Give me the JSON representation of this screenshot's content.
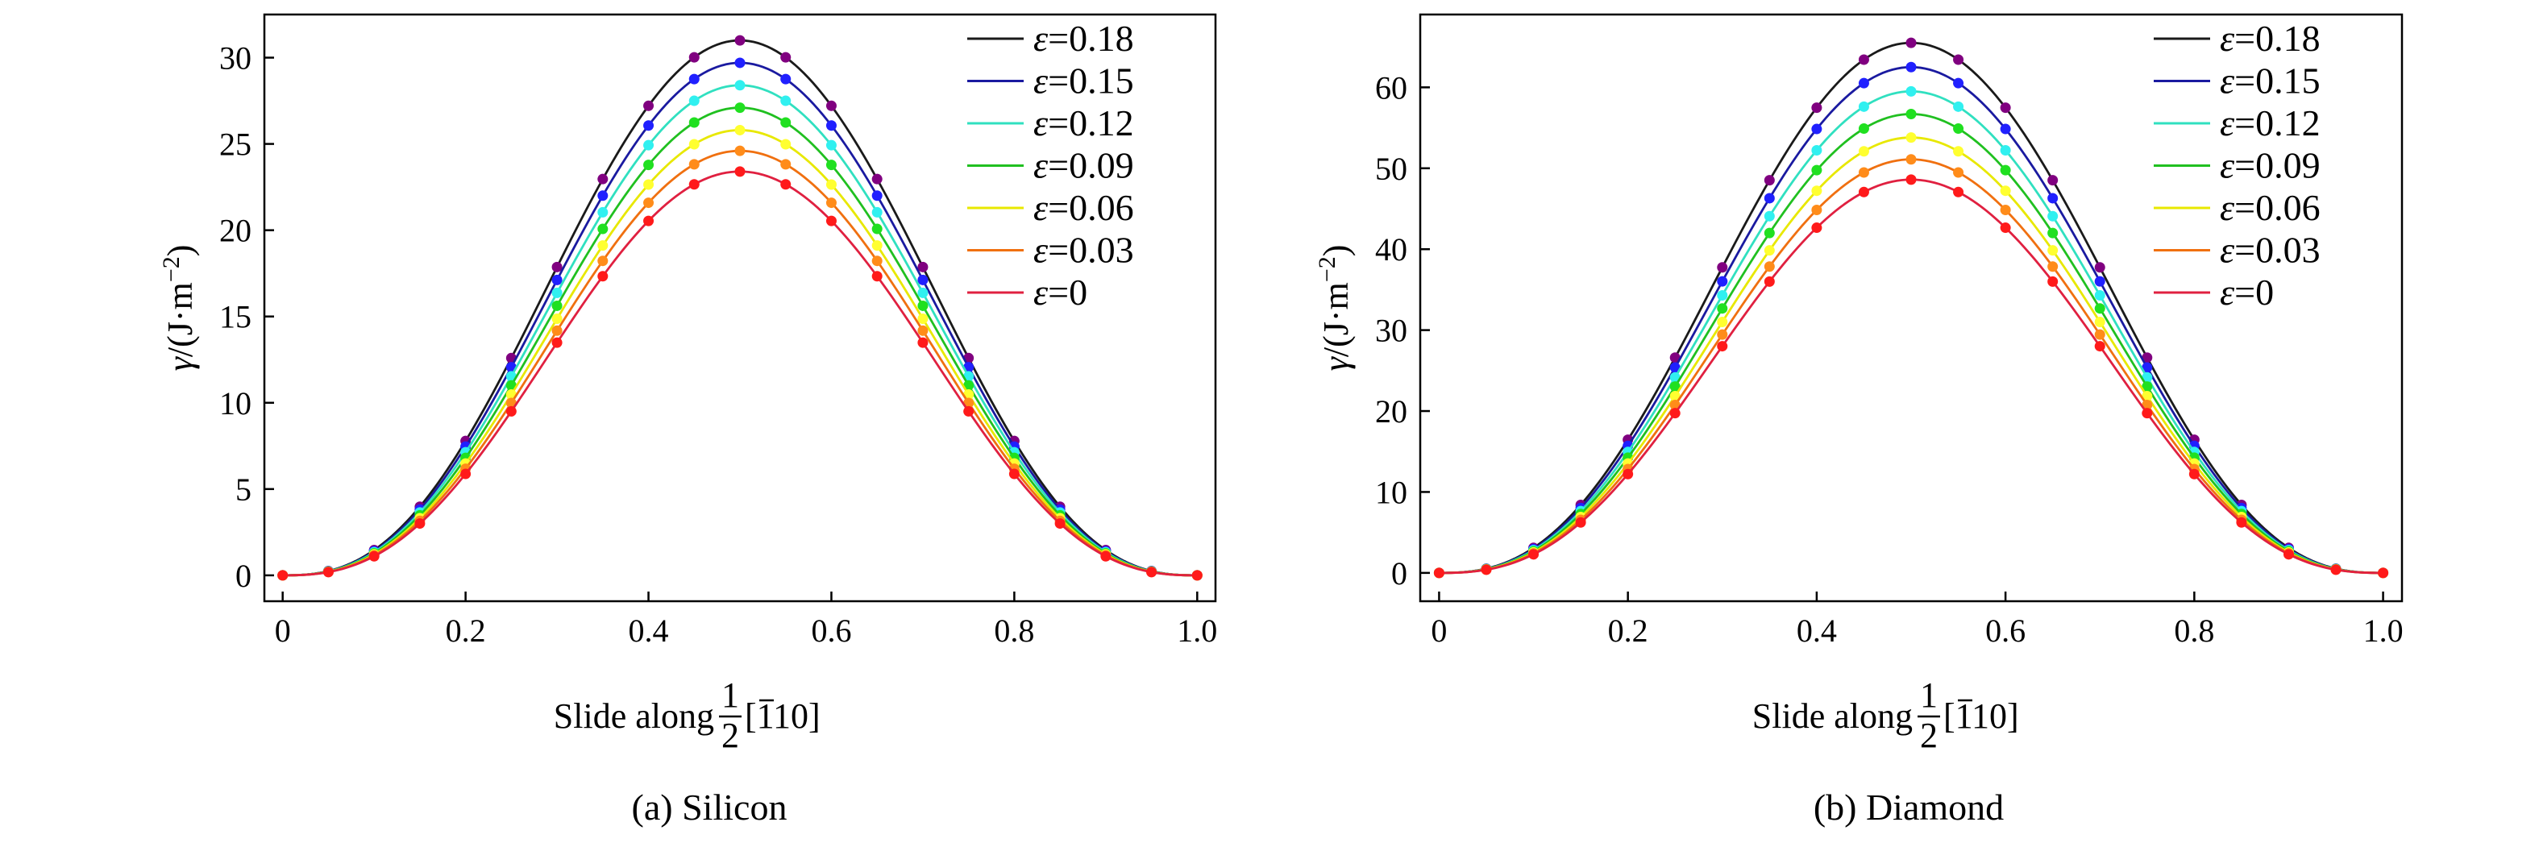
{
  "figure": {
    "panels": [
      "Silicon",
      "Diamond"
    ]
  },
  "chart_data": [
    {
      "type": "line",
      "title": "",
      "caption": "(a) Silicon",
      "xlabel_prefix": "Slide along",
      "xlabel_fraction_num": "1",
      "xlabel_fraction_den": "2",
      "xlabel_bracket_open": "[",
      "xlabel_bar_digit": "1",
      "xlabel_rest": "10]",
      "ylabel_gamma": "γ",
      "ylabel_rest": "/(J·m",
      "ylabel_sup": "−2",
      "ylabel_close": ")",
      "xlim": [
        -0.02,
        1.02
      ],
      "ylim": [
        -1.5,
        32.5
      ],
      "xticks": [
        0,
        0.2,
        0.4,
        0.6,
        0.8,
        1.0
      ],
      "xtick_labels": [
        "0",
        "0.2",
        "0.4",
        "0.6",
        "0.8",
        "1.0"
      ],
      "yticks": [
        0,
        5,
        10,
        15,
        20,
        25,
        30
      ],
      "ytick_labels": [
        "0",
        "5",
        "10",
        "15",
        "20",
        "25",
        "30"
      ],
      "legend_position": "top-right",
      "marker_x": [
        0,
        0.05,
        0.1,
        0.15,
        0.2,
        0.25,
        0.3,
        0.35,
        0.4,
        0.45,
        0.5,
        0.55,
        0.6,
        0.65,
        0.7,
        0.75,
        0.8,
        0.85,
        0.9,
        0.95,
        1.0
      ],
      "series": [
        {
          "name": "ε=0.18",
          "symbol": "ε",
          "value_text": "=0.18",
          "peak": 31.0,
          "line_color": "#1a1a1a",
          "marker_color": "#800080"
        },
        {
          "name": "ε=0.15",
          "symbol": "ε",
          "value_text": "=0.15",
          "peak": 29.7,
          "line_color": "#1a1aa0",
          "marker_color": "#2020ff"
        },
        {
          "name": "ε=0.12",
          "symbol": "ε",
          "value_text": "=0.12",
          "peak": 28.4,
          "line_color": "#30e0c0",
          "marker_color": "#30f0f0"
        },
        {
          "name": "ε=0.09",
          "symbol": "ε",
          "value_text": "=0.09",
          "peak": 27.1,
          "line_color": "#20c020",
          "marker_color": "#20e020"
        },
        {
          "name": "ε=0.06",
          "symbol": "ε",
          "value_text": "=0.06",
          "peak": 25.8,
          "line_color": "#e8e800",
          "marker_color": "#ffff30"
        },
        {
          "name": "ε=0.03",
          "symbol": "ε",
          "value_text": "=0.03",
          "peak": 24.6,
          "line_color": "#f07010",
          "marker_color": "#ff8c1a"
        },
        {
          "name": "ε=0",
          "symbol": "ε",
          "value_text": "=0",
          "peak": 23.4,
          "line_color": "#e02040",
          "marker_color": "#ff1a1a"
        }
      ]
    },
    {
      "type": "line",
      "title": "",
      "caption": "(b) Diamond",
      "xlabel_prefix": "Slide along",
      "xlabel_fraction_num": "1",
      "xlabel_fraction_den": "2",
      "xlabel_bracket_open": "[",
      "xlabel_bar_digit": "1",
      "xlabel_rest": "10]",
      "ylabel_gamma": "γ",
      "ylabel_rest": "/(J·m",
      "ylabel_sup": "−2",
      "ylabel_close": ")",
      "xlim": [
        -0.02,
        1.02
      ],
      "ylim": [
        -3.5,
        69
      ],
      "xticks": [
        0,
        0.2,
        0.4,
        0.6,
        0.8,
        1.0
      ],
      "xtick_labels": [
        "0",
        "0.2",
        "0.4",
        "0.6",
        "0.8",
        "1.0"
      ],
      "yticks": [
        0,
        10,
        20,
        30,
        40,
        50,
        60
      ],
      "ytick_labels": [
        "0",
        "10",
        "20",
        "30",
        "40",
        "50",
        "60"
      ],
      "legend_position": "top-right",
      "marker_x": [
        0,
        0.05,
        0.1,
        0.15,
        0.2,
        0.25,
        0.3,
        0.35,
        0.4,
        0.45,
        0.5,
        0.55,
        0.6,
        0.65,
        0.7,
        0.75,
        0.8,
        0.85,
        0.9,
        0.95,
        1.0
      ],
      "series": [
        {
          "name": "ε=0.18",
          "symbol": "ε",
          "value_text": "=0.18",
          "peak": 65.5,
          "line_color": "#1a1a1a",
          "marker_color": "#800080"
        },
        {
          "name": "ε=0.15",
          "symbol": "ε",
          "value_text": "=0.15",
          "peak": 62.5,
          "line_color": "#1a1aa0",
          "marker_color": "#2020ff"
        },
        {
          "name": "ε=0.12",
          "symbol": "ε",
          "value_text": "=0.12",
          "peak": 59.5,
          "line_color": "#30e0c0",
          "marker_color": "#30f0f0"
        },
        {
          "name": "ε=0.09",
          "symbol": "ε",
          "value_text": "=0.09",
          "peak": 56.7,
          "line_color": "#20c020",
          "marker_color": "#20e020"
        },
        {
          "name": "ε=0.06",
          "symbol": "ε",
          "value_text": "=0.06",
          "peak": 53.8,
          "line_color": "#e8e800",
          "marker_color": "#ffff30"
        },
        {
          "name": "ε=0.03",
          "symbol": "ε",
          "value_text": "=0.03",
          "peak": 51.1,
          "line_color": "#f07010",
          "marker_color": "#ff8c1a"
        },
        {
          "name": "ε=0",
          "symbol": "ε",
          "value_text": "=0",
          "peak": 48.6,
          "line_color": "#e02040",
          "marker_color": "#ff1a1a"
        }
      ]
    }
  ]
}
